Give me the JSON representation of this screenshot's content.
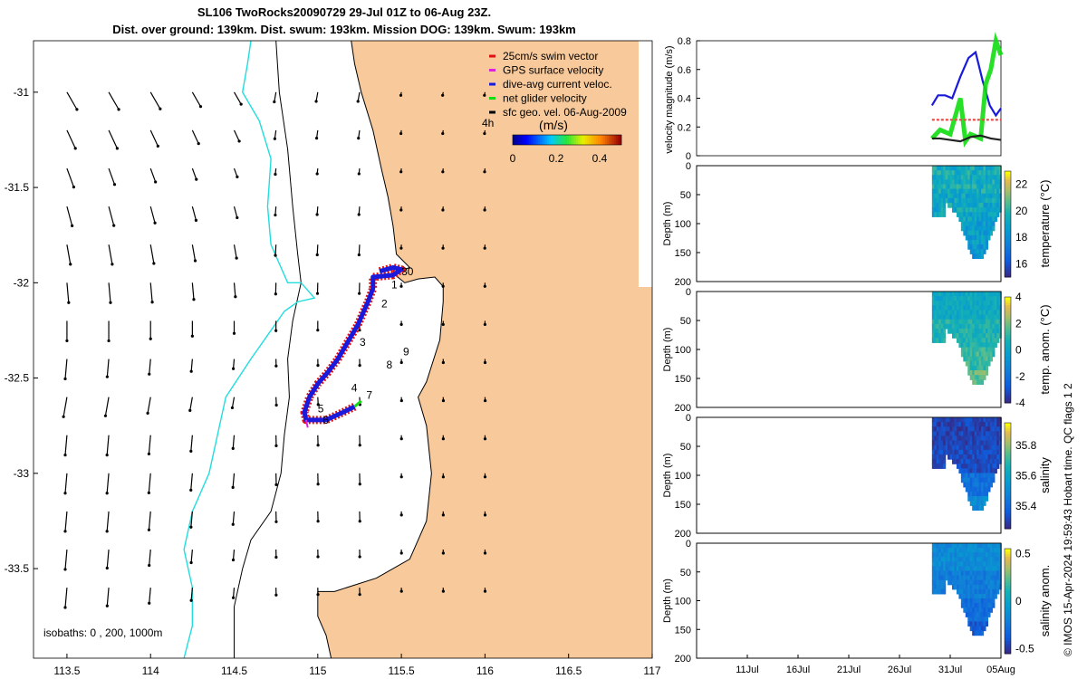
{
  "titles": {
    "line1": "SL106 TwoRocks20090729 29-Jul 01Z to 06-Aug 23Z.",
    "line2": "Dist. over ground: 139km. Dist. swum: 193km. Mission DOG: 139km. Swum: 193km"
  },
  "footer_note": "© IMOS 15-Apr-2024 19:59:43 Hobart time. QC flags 1  2",
  "colors": {
    "land": "#f8c99a",
    "coast": "#000000",
    "isobath_200": "#000000",
    "isobath_1000": "#22dddd",
    "track_red": "#dd1111",
    "track_blue": "#1a1adc",
    "track_green": "#11dd11",
    "gps_magenta": "#dd22dd"
  },
  "chart_data": [
    {
      "type": "map",
      "name": "track-map",
      "xlim": [
        113.3,
        117
      ],
      "ylim": [
        -33.97,
        -30.73
      ],
      "xticks": [
        "113.5",
        "114",
        "114.5",
        "115",
        "115.5",
        "116",
        "116.5",
        "117"
      ],
      "yticks": [
        "-31",
        "-31.5",
        "-32",
        "-32.5",
        "-33",
        "-33.5"
      ],
      "legend": {
        "placement": "top-right",
        "entries": [
          "25cm/s swim vector",
          "GPS surface velocity",
          "dive-avg current veloc.",
          "net glider velocity",
          "sfc geo. vel. 06-Aug-2009"
        ],
        "scale_label": "4h",
        "colorbar_title": "(m/s)",
        "colorbar_ticks": [
          "0",
          "0.2",
          "0.4"
        ],
        "colorbar_range": [
          0,
          0.5
        ]
      },
      "isobath_note": "isobaths: 0 , 200, 1000m",
      "day_labels": [
        {
          "text": "1",
          "x": 115.44,
          "y": -32.03
        },
        {
          "text": "2",
          "x": 115.38,
          "y": -32.13
        },
        {
          "text": "3",
          "x": 115.25,
          "y": -32.33
        },
        {
          "text": "4",
          "x": 115.2,
          "y": -32.57
        },
        {
          "text": "5",
          "x": 115.0,
          "y": -32.68
        },
        {
          "text": "6",
          "x": 115.03,
          "y": -32.74
        },
        {
          "text": "7",
          "x": 115.29,
          "y": -32.61
        },
        {
          "text": "8",
          "x": 115.41,
          "y": -32.45
        },
        {
          "text": "9",
          "x": 115.51,
          "y": -32.38
        },
        {
          "text": "30",
          "x": 115.5,
          "y": -31.96
        }
      ],
      "track": [
        [
          115.37,
          -31.94
        ],
        [
          115.45,
          -31.92
        ],
        [
          115.5,
          -31.93
        ],
        [
          115.45,
          -31.96
        ],
        [
          115.33,
          -31.97
        ],
        [
          115.33,
          -32.03
        ],
        [
          115.3,
          -32.1
        ],
        [
          115.24,
          -32.22
        ],
        [
          115.18,
          -32.31
        ],
        [
          115.12,
          -32.4
        ],
        [
          115.06,
          -32.47
        ],
        [
          115.0,
          -32.53
        ],
        [
          114.95,
          -32.6
        ],
        [
          114.92,
          -32.68
        ],
        [
          114.93,
          -32.72
        ],
        [
          115.05,
          -32.72
        ],
        [
          115.15,
          -32.68
        ],
        [
          115.22,
          -32.65
        ]
      ]
    },
    {
      "type": "line",
      "name": "velocity-panel",
      "ylabel": "velocity magnitude (m/s)",
      "ylim": [
        0,
        0.8
      ],
      "yticks": [
        "0",
        "0.2",
        "0.4",
        "0.6",
        "0.8"
      ],
      "xlim": [
        0,
        30
      ],
      "series": [
        {
          "color": "#1a1adc",
          "x": [
            23.2,
            23.8,
            24.5,
            25.2,
            26,
            26.8,
            27.5,
            28.2,
            28.9,
            29.5,
            30
          ],
          "values": [
            0.35,
            0.42,
            0.42,
            0.4,
            0.55,
            0.68,
            0.72,
            0.52,
            0.35,
            0.28,
            0.33
          ]
        },
        {
          "color": "#11dd11",
          "x": [
            23.2,
            24,
            25,
            26,
            26.5,
            27,
            28,
            28.5,
            29,
            29.5,
            30
          ],
          "values": [
            0.12,
            0.18,
            0.15,
            0.4,
            0.1,
            0.15,
            0.12,
            0.5,
            0.6,
            0.8,
            0.7
          ]
        },
        {
          "color": "#222222",
          "x": [
            23.2,
            24,
            25,
            26,
            27,
            28,
            29,
            30
          ],
          "values": [
            0.12,
            0.12,
            0.11,
            0.1,
            0.13,
            0.14,
            0.12,
            0.11
          ]
        },
        {
          "color": "#ee4444",
          "x": [
            23.2,
            24,
            25,
            26,
            27,
            28,
            29,
            30
          ],
          "values": [
            0.25,
            0.25,
            0.25,
            0.25,
            0.25,
            0.25,
            0.25,
            0.25
          ]
        }
      ]
    },
    {
      "type": "heatmap",
      "name": "temperature-panel",
      "ylabel": "Depth (m)",
      "ylim": [
        200,
        0
      ],
      "yticks": [
        "0",
        "50",
        "100",
        "150",
        "200"
      ],
      "colorbar_label": "temperature (°C)",
      "colorbar_ticks": [
        "16",
        "18",
        "20",
        "22"
      ],
      "colorbar_range": [
        15,
        23
      ],
      "values": [
        19.5,
        19.2,
        18.8,
        18.4
      ],
      "spread": 1.0,
      "colormap": "parula",
      "mask": "cast"
    },
    {
      "type": "heatmap",
      "name": "temp-anomaly-panel",
      "ylabel": "Depth (m)",
      "ylim": [
        200,
        0
      ],
      "yticks": [
        "0",
        "50",
        "100",
        "150",
        "200"
      ],
      "colorbar_label": "temp. anom. (°C)",
      "colorbar_ticks": [
        "-4",
        "-2",
        "0",
        "2",
        "4"
      ],
      "colorbar_range": [
        -4,
        4
      ],
      "values": [
        0.3,
        0.8,
        1.3,
        1.8
      ],
      "spread": 0.7,
      "colormap": "parula",
      "mask": "cast"
    },
    {
      "type": "heatmap",
      "name": "salinity-panel",
      "ylabel": "Depth (m)",
      "ylim": [
        200,
        0
      ],
      "yticks": [
        "0",
        "50",
        "100",
        "150",
        "200"
      ],
      "colorbar_label": "salinity",
      "colorbar_ticks": [
        "35.4",
        "35.6",
        "35.8"
      ],
      "colorbar_range": [
        35.25,
        35.95
      ],
      "values": [
        35.3,
        35.32,
        35.42,
        35.5
      ],
      "spread": 0.05,
      "colormap": "parula",
      "mask": "cast"
    },
    {
      "type": "heatmap",
      "name": "salinity-anomaly-panel",
      "ylabel": "Depth (m)",
      "ylim": [
        200,
        0
      ],
      "yticks": [
        "0",
        "50",
        "100",
        "150",
        "200"
      ],
      "colorbar_label": "salinity anom.",
      "colorbar_ticks": [
        "-0.5",
        "0",
        "0.5"
      ],
      "colorbar_range": [
        -0.55,
        0.55
      ],
      "values": [
        -0.15,
        -0.22,
        -0.3,
        -0.38
      ],
      "spread": 0.08,
      "colormap": "parula",
      "mask": "cast"
    },
    {
      "type": "axis",
      "name": "date-axis",
      "xlim": [
        0,
        30
      ],
      "ticks": [
        {
          "x": 5,
          "label": "11Jul"
        },
        {
          "x": 10,
          "label": "16Jul"
        },
        {
          "x": 15,
          "label": "21Jul"
        },
        {
          "x": 20,
          "label": "26Jul"
        },
        {
          "x": 25,
          "label": "31Jul"
        },
        {
          "x": 30,
          "label": "05Aug"
        }
      ]
    }
  ]
}
